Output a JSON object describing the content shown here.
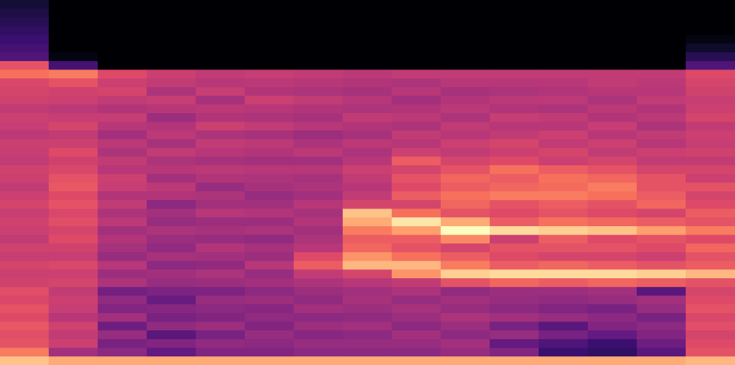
{
  "chart_data": {
    "type": "heatmap",
    "color": "magma",
    "tick_labels": false,
    "xlim": [
      0,
      15
    ],
    "ylim": [
      0,
      42
    ],
    "zlim": [
      -80,
      0
    ],
    "cells": [
      [
        -10,
        -22,
        -30,
        -31,
        -29,
        -32,
        -30,
        -33,
        -31,
        -35,
        -36,
        -34,
        -37,
        -35,
        -38,
        -36,
        -35,
        -37,
        -34,
        -36,
        -38,
        -36,
        -35,
        -38,
        -37,
        -36,
        -39,
        -37,
        -36,
        -38,
        -35,
        -34,
        -33,
        -24,
        -30,
        -60,
        -62,
        -64,
        -66,
        -68,
        -70,
        -72
      ],
      [
        -14,
        -44,
        -36,
        -38,
        -35,
        -40,
        -37,
        -36,
        -38,
        -34,
        -36,
        -33,
        -37,
        -35,
        -32,
        -34,
        -31,
        -33,
        -30,
        -32,
        -29,
        -30,
        -33,
        -35,
        -32,
        -36,
        -38,
        -34,
        -37,
        -39,
        -36,
        -35,
        -30,
        -22,
        -62,
        -78,
        -80,
        -80,
        -80,
        -80,
        -80,
        -80
      ],
      [
        -14,
        -48,
        -52,
        -46,
        -54,
        -44,
        -50,
        -47,
        -53,
        -42,
        -45,
        -40,
        -46,
        -43,
        -41,
        -44,
        -39,
        -42,
        -38,
        -41,
        -37,
        -36,
        -40,
        -38,
        -42,
        -39,
        -44,
        -40,
        -37,
        -41,
        -38,
        -34,
        -36,
        -32,
        -80,
        -80,
        -80,
        -80,
        -80,
        -80,
        -80,
        -80
      ],
      [
        -14,
        -56,
        -50,
        -58,
        -47,
        -52,
        -49,
        -55,
        -51,
        -46,
        -44,
        -48,
        -43,
        -47,
        -45,
        -42,
        -46,
        -44,
        -48,
        -41,
        -39,
        -44,
        -40,
        -42,
        -38,
        -43,
        -39,
        -41,
        -45,
        -40,
        -37,
        -42,
        -38,
        -36,
        -80,
        -80,
        -80,
        -80,
        -80,
        -80,
        -80,
        -80
      ],
      [
        -14,
        -50,
        -47,
        -52,
        -45,
        -50,
        -48,
        -46,
        -51,
        -45,
        -42,
        -47,
        -44,
        -41,
        -46,
        -43,
        -45,
        -40,
        -44,
        -42,
        -46,
        -41,
        -39,
        -43,
        -40,
        -38,
        -42,
        -36,
        -41,
        -39,
        -43,
        -37,
        -40,
        -38,
        -80,
        -80,
        -80,
        -80,
        -80,
        -80,
        -80,
        -80
      ],
      [
        -14,
        -50,
        -48,
        -46,
        -50,
        -47,
        -49,
        -45,
        -48,
        -44,
        -46,
        -40,
        -45,
        -43,
        -47,
        -42,
        -45,
        -41,
        -44,
        -46,
        -43,
        -42,
        -40,
        -44,
        -41,
        -39,
        -43,
        -38,
        -42,
        -40,
        -36,
        -41,
        -39,
        -37,
        -80,
        -80,
        -80,
        -80,
        -80,
        -80,
        -80,
        -80
      ],
      [
        -14,
        -48,
        -46,
        -49,
        -45,
        -48,
        -44,
        -47,
        -45,
        -42,
        -38,
        -28,
        -32,
        -40,
        -42,
        -44,
        -41,
        -43,
        -40,
        -44,
        -42,
        -43,
        -40,
        -44,
        -39,
        -42,
        -45,
        -40,
        -43,
        -41,
        -38,
        -42,
        -40,
        -38,
        -80,
        -80,
        -80,
        -80,
        -80,
        -80,
        -80,
        -80
      ],
      [
        -14,
        -48,
        -46,
        -48,
        -44,
        -47,
        -45,
        -43,
        -44,
        -40,
        -34,
        -12,
        -18,
        -26,
        -28,
        -22,
        -14,
        -10,
        -34,
        -38,
        -40,
        -38,
        -36,
        -40,
        -42,
        -39,
        -43,
        -41,
        -38,
        -42,
        -40,
        -43,
        -41,
        -39,
        -80,
        -80,
        -80,
        -80,
        -80,
        -80,
        -80,
        -80
      ],
      [
        -14,
        -48,
        -46,
        -44,
        -48,
        -45,
        -43,
        -46,
        -42,
        -38,
        -18,
        -12,
        -24,
        -30,
        -28,
        -16,
        -4,
        -24,
        -34,
        -28,
        -32,
        -30,
        -34,
        -28,
        -36,
        -40,
        -38,
        -42,
        -39,
        -41,
        -44,
        -40,
        -42,
        -38,
        -80,
        -80,
        -80,
        -80,
        -80,
        -80,
        -80,
        -80
      ],
      [
        -14,
        -46,
        -44,
        -48,
        -45,
        -42,
        -46,
        -44,
        -47,
        -30,
        -8,
        -22,
        -28,
        -34,
        -20,
        0,
        -14,
        -30,
        -26,
        -24,
        -28,
        -26,
        -30,
        -34,
        -38,
        -36,
        -40,
        -38,
        -42,
        -39,
        -41,
        -43,
        -40,
        -38,
        -80,
        -80,
        -80,
        -80,
        -80,
        -80,
        -80,
        -80
      ],
      [
        -14,
        -50,
        -56,
        -46,
        -52,
        -44,
        -48,
        -46,
        -45,
        -26,
        -6,
        -28,
        -32,
        -30,
        -36,
        -6,
        -28,
        -32,
        -30,
        -22,
        -26,
        -28,
        -24,
        -32,
        -36,
        -34,
        -38,
        -40,
        -37,
        -41,
        -39,
        -42,
        -40,
        -38,
        -80,
        -80,
        -80,
        -80,
        -80,
        -80,
        -80,
        -80
      ],
      [
        -14,
        -64,
        -60,
        -52,
        -58,
        -46,
        -50,
        -47,
        -45,
        -28,
        -6,
        -26,
        -34,
        -30,
        -28,
        -8,
        -24,
        -30,
        -28,
        -22,
        -25,
        -24,
        -28,
        -36,
        -34,
        -38,
        -36,
        -40,
        -38,
        -42,
        -39,
        -41,
        -40,
        -38,
        -80,
        -80,
        -80,
        -80,
        -80,
        -80,
        -80,
        -80
      ],
      [
        -14,
        -66,
        -64,
        -56,
        -50,
        -48,
        -52,
        -46,
        -44,
        -26,
        -6,
        -28,
        -34,
        -30,
        -32,
        -10,
        -26,
        -32,
        -30,
        -24,
        -22,
        -26,
        -30,
        -34,
        -38,
        -36,
        -40,
        -37,
        -41,
        -39,
        -42,
        -40,
        -38,
        -38,
        -80,
        -80,
        -80,
        -80,
        -80,
        -80,
        -80,
        -80
      ],
      [
        -14,
        -58,
        -54,
        -50,
        -48,
        -52,
        -46,
        -44,
        -58,
        -28,
        -8,
        -30,
        -36,
        -32,
        -30,
        -16,
        -28,
        -34,
        -26,
        -28,
        -30,
        -30,
        -34,
        -38,
        -36,
        -40,
        -38,
        -42,
        -39,
        -41,
        -38,
        -40,
        -39,
        -38,
        -80,
        -80,
        -80,
        -80,
        -80,
        -80,
        -80,
        -80
      ],
      [
        -12,
        -30,
        -32,
        -34,
        -31,
        -33,
        -30,
        -32,
        -34,
        -30,
        -12,
        -28,
        -30,
        -26,
        -32,
        -22,
        -30,
        -28,
        -32,
        -34,
        -30,
        -36,
        -34,
        -38,
        -35,
        -37,
        -36,
        -38,
        -34,
        -36,
        -37,
        -35,
        -34,
        -32,
        -60,
        -68,
        -74,
        -78,
        -80,
        -80,
        -80,
        -80
      ]
    ]
  }
}
